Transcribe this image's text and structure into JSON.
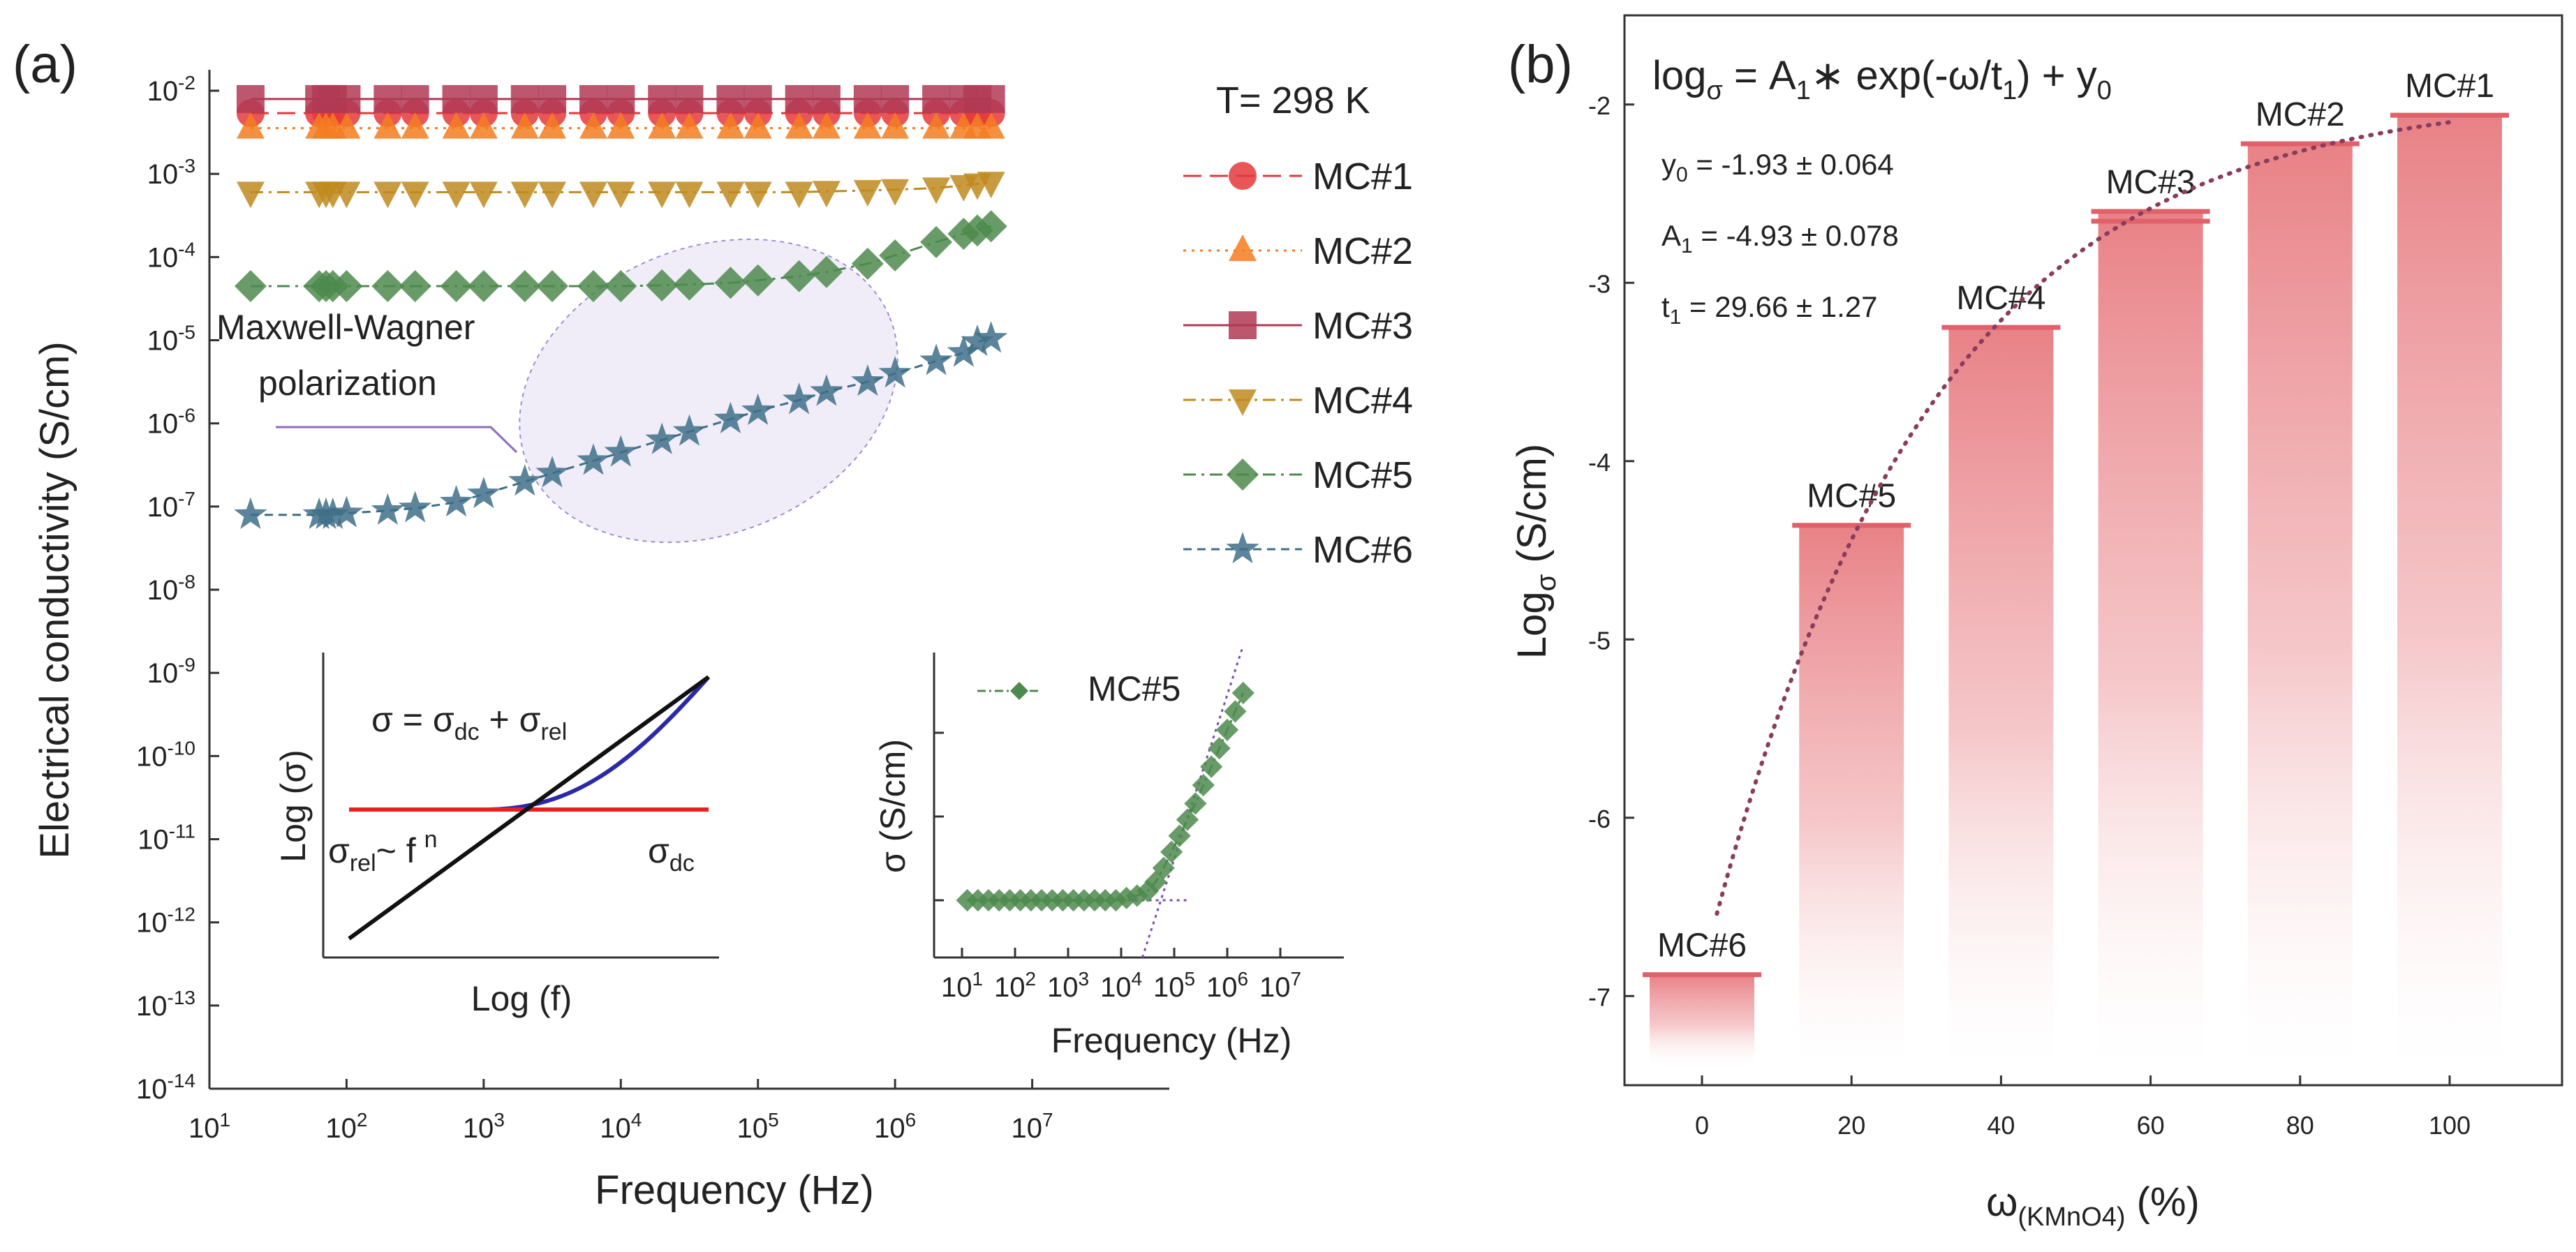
{
  "chart_data": [
    {
      "panel": "(a)",
      "type": "line",
      "scale": "log-log",
      "xlabel": "Frequency (Hz)",
      "ylabel": "Electrical conductivity (S/cm)",
      "x_exponent_range": [
        1,
        8
      ],
      "y_exponent_range": [
        -14,
        -2
      ],
      "x_tick_base": "10",
      "x_tick_exponents": [
        "1",
        "2",
        "3",
        "4",
        "5",
        "6",
        "7"
      ],
      "y_tick_base": "10",
      "y_tick_exponents": [
        "-2",
        "-3",
        "-4",
        "-5",
        "-6",
        "-7",
        "-8",
        "-9",
        "-10",
        "-11",
        "-12",
        "-13",
        "-14"
      ],
      "legend_title": "T= 298 K",
      "legend_position": "top-right",
      "series": [
        {
          "name": "MC#1",
          "marker": "circle",
          "color": "#e5383b",
          "dash": "long",
          "log_x": [
            1.3,
            1.8,
            1.85,
            1.9,
            2.0,
            2.3,
            2.5,
            2.8,
            3.0,
            3.3,
            3.5,
            3.8,
            4.0,
            4.3,
            4.5,
            4.8,
            5.0,
            5.3,
            5.5,
            5.8,
            6.0,
            6.3,
            6.5,
            6.6,
            6.7
          ],
          "log_y": [
            -2.27,
            -2.27,
            -2.27,
            -2.27,
            -2.27,
            -2.27,
            -2.27,
            -2.27,
            -2.27,
            -2.27,
            -2.27,
            -2.27,
            -2.27,
            -2.27,
            -2.27,
            -2.27,
            -2.27,
            -2.27,
            -2.27,
            -2.27,
            -2.27,
            -2.27,
            -2.27,
            -2.27,
            -2.27
          ]
        },
        {
          "name": "MC#2",
          "marker": "triangle-up",
          "color": "#f47c20",
          "dash": "dot",
          "log_x": [
            1.3,
            1.8,
            1.85,
            1.9,
            2.0,
            2.3,
            2.5,
            2.8,
            3.0,
            3.3,
            3.5,
            3.8,
            4.0,
            4.3,
            4.5,
            4.8,
            5.0,
            5.3,
            5.5,
            5.8,
            6.0,
            6.3,
            6.5,
            6.6,
            6.7
          ],
          "log_y": [
            -2.45,
            -2.45,
            -2.45,
            -2.45,
            -2.45,
            -2.45,
            -2.45,
            -2.45,
            -2.45,
            -2.45,
            -2.45,
            -2.45,
            -2.45,
            -2.45,
            -2.45,
            -2.45,
            -2.45,
            -2.45,
            -2.45,
            -2.45,
            -2.45,
            -2.45,
            -2.45,
            -2.45,
            -2.45
          ]
        },
        {
          "name": "MC#3",
          "marker": "square",
          "color": "#b03a55",
          "dash": "solid",
          "log_x": [
            1.3,
            1.8,
            1.85,
            1.9,
            2.0,
            2.3,
            2.5,
            2.8,
            3.0,
            3.3,
            3.5,
            3.8,
            4.0,
            4.3,
            4.5,
            4.8,
            5.0,
            5.3,
            5.5,
            5.8,
            6.0,
            6.3,
            6.5,
            6.6,
            6.7
          ],
          "log_y": [
            -2.1,
            -2.1,
            -2.1,
            -2.1,
            -2.1,
            -2.1,
            -2.1,
            -2.1,
            -2.1,
            -2.1,
            -2.1,
            -2.1,
            -2.1,
            -2.1,
            -2.1,
            -2.1,
            -2.1,
            -2.1,
            -2.1,
            -2.1,
            -2.1,
            -2.1,
            -2.1,
            -2.1,
            -2.1
          ]
        },
        {
          "name": "MC#4",
          "marker": "triangle-down",
          "color": "#c08a1e",
          "dash": "dashdot",
          "log_x": [
            1.3,
            1.8,
            1.85,
            1.9,
            2.0,
            2.3,
            2.5,
            2.8,
            3.0,
            3.3,
            3.5,
            3.8,
            4.0,
            4.3,
            4.5,
            4.8,
            5.0,
            5.3,
            5.5,
            5.8,
            6.0,
            6.3,
            6.5,
            6.6,
            6.7
          ],
          "log_y": [
            -3.22,
            -3.22,
            -3.22,
            -3.22,
            -3.22,
            -3.22,
            -3.22,
            -3.22,
            -3.22,
            -3.22,
            -3.22,
            -3.22,
            -3.22,
            -3.22,
            -3.22,
            -3.22,
            -3.22,
            -3.22,
            -3.21,
            -3.2,
            -3.19,
            -3.17,
            -3.14,
            -3.12,
            -3.1
          ]
        },
        {
          "name": "MC#5",
          "marker": "diamond",
          "color": "#4e8a4e",
          "dash": "dashdot",
          "log_x": [
            1.3,
            1.8,
            1.85,
            1.9,
            2.0,
            2.3,
            2.5,
            2.8,
            3.0,
            3.3,
            3.5,
            3.8,
            4.0,
            4.3,
            4.5,
            4.8,
            5.0,
            5.3,
            5.5,
            5.8,
            6.0,
            6.3,
            6.5,
            6.6,
            6.7
          ],
          "log_y": [
            -4.35,
            -4.35,
            -4.35,
            -4.35,
            -4.35,
            -4.35,
            -4.35,
            -4.35,
            -4.35,
            -4.35,
            -4.35,
            -4.35,
            -4.35,
            -4.34,
            -4.33,
            -4.31,
            -4.28,
            -4.23,
            -4.18,
            -4.08,
            -3.98,
            -3.82,
            -3.72,
            -3.68,
            -3.63
          ]
        },
        {
          "name": "MC#6",
          "marker": "star",
          "color": "#3f6f88",
          "dash": "dash",
          "log_x": [
            1.3,
            1.8,
            1.85,
            1.9,
            2.0,
            2.3,
            2.5,
            2.8,
            3.0,
            3.3,
            3.5,
            3.8,
            4.0,
            4.3,
            4.5,
            4.8,
            5.0,
            5.3,
            5.5,
            5.8,
            6.0,
            6.3,
            6.5,
            6.6,
            6.7
          ],
          "log_y": [
            -7.1,
            -7.1,
            -7.1,
            -7.1,
            -7.08,
            -7.05,
            -7.02,
            -6.95,
            -6.85,
            -6.7,
            -6.6,
            -6.45,
            -6.35,
            -6.2,
            -6.1,
            -5.95,
            -5.85,
            -5.72,
            -5.62,
            -5.5,
            -5.4,
            -5.25,
            -5.15,
            -5.02,
            -4.98
          ]
        }
      ],
      "annotation": {
        "line1": "Maxwell-Wagner",
        "line2": "polarization"
      },
      "insets": [
        {
          "type": "schematic",
          "xlabel": "Log (f)",
          "ylabel": "Log (σ)",
          "equation_lead": "σ = σ",
          "equation_sub1": "dc",
          "equation_mid": " + σ",
          "equation_sub2": "rel",
          "rel_lead": "σ",
          "rel_sub": "rel",
          "rel_tail": "~ f",
          "rel_sup": "n",
          "dc_lead": "σ",
          "dc_sub": "dc"
        },
        {
          "type": "line",
          "series_name": "MC#5",
          "xlabel": "Frequency (Hz)",
          "ylabel": "σ (S/cm)",
          "x_tick_exponents": [
            "1",
            "2",
            "3",
            "4",
            "5",
            "6",
            "7"
          ],
          "log_x": [
            1.1,
            1.3,
            1.5,
            1.7,
            1.9,
            2.1,
            2.3,
            2.5,
            2.7,
            2.9,
            3.1,
            3.3,
            3.5,
            3.7,
            3.9,
            4.1,
            4.3,
            4.5,
            4.65,
            4.8,
            4.95,
            5.1,
            5.25,
            5.4,
            5.55,
            5.7,
            5.85,
            6.0,
            6.15,
            6.3
          ],
          "y_rel": [
            0.0,
            0.0,
            0.0,
            0.0,
            0.0,
            0.0,
            0.0,
            0.0,
            0.0,
            0.0,
            0.0,
            0.0,
            0.0,
            0.0,
            0.0,
            0.01,
            0.02,
            0.04,
            0.08,
            0.14,
            0.21,
            0.28,
            0.35,
            0.42,
            0.5,
            0.58,
            0.66,
            0.74,
            0.82,
            0.9
          ]
        }
      ]
    },
    {
      "panel": "(b)",
      "type": "bar",
      "xlabel_lead": "ω",
      "xlabel_sub": "(KMnO4)",
      "xlabel_tail": " (%)",
      "ylabel_lead": "Log",
      "ylabel_sub": "σ",
      "ylabel_tail": " (S/cm)",
      "ylim": [
        -7.5,
        -1.5
      ],
      "x_ticks": [
        "0",
        "20",
        "40",
        "60",
        "80",
        "100"
      ],
      "y_ticks": [
        "-2",
        "-3",
        "-4",
        "-5",
        "-6",
        "-7"
      ],
      "categories": [
        "0",
        "20",
        "40",
        "60",
        "80",
        "100"
      ],
      "bar_labels": [
        "MC#6",
        "MC#5",
        "MC#4",
        "MC#3",
        "MC#2",
        "MC#1"
      ],
      "values": [
        -6.88,
        -4.36,
        -3.25,
        -2.6,
        -2.22,
        -2.06
      ],
      "fit": {
        "equation": {
          "lead": "log",
          "sub_sigma": "σ",
          "eq1": " = A",
          "sub1": "1",
          "mid": "∗ exp(-ω/t",
          "sub2": "1",
          "close": ") + y",
          "sub0": "0"
        },
        "params": [
          {
            "sym": "y",
            "sub": "0",
            "val": " = -1.93 ± 0.064"
          },
          {
            "sym": "A",
            "sub": "1",
            "val": " = -4.93 ± 0.078"
          },
          {
            "sym": "t",
            "sub": "1",
            "val": " = 29.66 ± 1.27"
          }
        ],
        "A1": -4.93,
        "t1": 29.66,
        "y0": -1.93,
        "x_range": [
          2,
          100
        ]
      }
    }
  ]
}
